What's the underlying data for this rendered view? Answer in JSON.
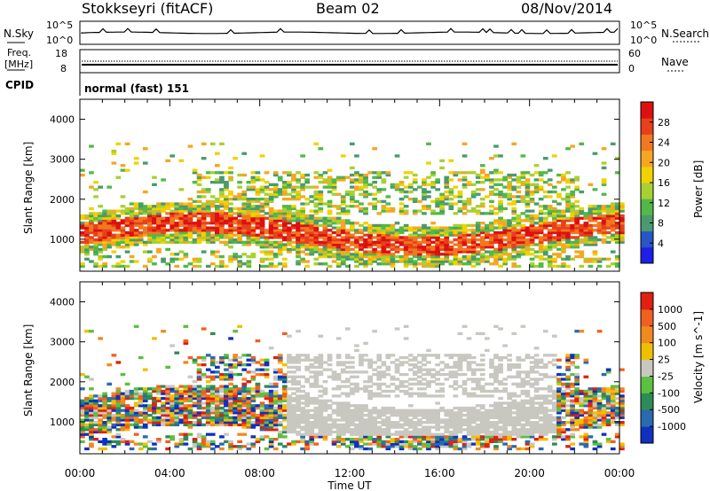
{
  "header": {
    "station": "Stokkseyri (fitACF)",
    "beam": "Beam 02",
    "date": "08/Nov/2014"
  },
  "noise_panel": {
    "left_label": "N.Sky",
    "right_label": "N.Search",
    "left_ticks": [
      "10^5",
      "10^0"
    ],
    "right_ticks": [
      "10^5",
      "10^0"
    ]
  },
  "freq_panel": {
    "left_label_1": "Freq.",
    "left_label_2": "[MHz]",
    "left_ticks": [
      "18",
      "8"
    ],
    "right_label": "Nave",
    "right_ticks": [
      "60",
      "0"
    ]
  },
  "cpid_panel": {
    "label": "CPID",
    "mode": "normal (fast) 151"
  },
  "chart_data": [
    {
      "type": "heatmap",
      "name": "power",
      "ylabel": "Slant Range [km]",
      "yticks": [
        1000,
        2000,
        3000,
        4000
      ],
      "ylim": [
        200,
        4500
      ],
      "xlim": [
        0,
        24
      ],
      "colorbar": {
        "label": "Power [dB]",
        "ticks": [
          4,
          8,
          12,
          16,
          20,
          24,
          28
        ],
        "range": [
          0,
          32
        ],
        "colors": [
          "#1e1ee6",
          "#2855c8",
          "#4a9a6e",
          "#52b848",
          "#a8d030",
          "#f0d200",
          "#f5a623",
          "#f07820",
          "#e8401c",
          "#dd1010"
        ]
      }
    },
    {
      "type": "heatmap",
      "name": "velocity",
      "ylabel": "Slant Range [km]",
      "yticks": [
        1000,
        2000,
        3000,
        4000
      ],
      "ylim": [
        200,
        4500
      ],
      "xlim": [
        0,
        24
      ],
      "xticks": [
        "00:00",
        "04:00",
        "08:00",
        "12:00",
        "16:00",
        "20:00",
        "00:00"
      ],
      "xlabel": "Time UT",
      "colorbar": {
        "label": "Velocity [m s^-1]",
        "ticks": [
          "1000",
          "500",
          "100",
          "25",
          "-25",
          "-100",
          "-500",
          "-1000"
        ],
        "colors": [
          "#1030c0",
          "#2a6ab0",
          "#2e8b57",
          "#5cc040",
          "#c8c8c0",
          "#f0c000",
          "#f08a20",
          "#f06020",
          "#e02010"
        ]
      }
    }
  ]
}
